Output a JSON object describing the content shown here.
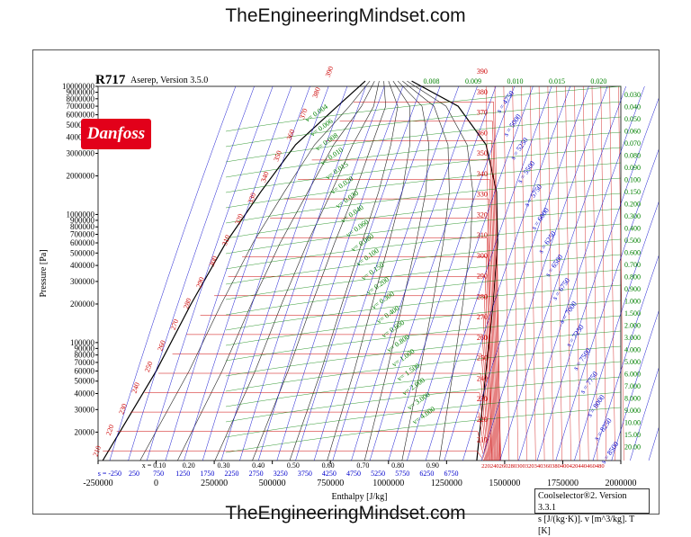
{
  "watermark": {
    "top": "TheEngineeringMindset.com",
    "bottom": "TheEngineeringMindset.com"
  },
  "header": {
    "title": "R717",
    "subtitle": "Aserep, Version 3.5.0",
    "logo_text": "Danfoss"
  },
  "info_box": {
    "line1": "Coolselector®2. Version 3.3.1",
    "line2": "s [J/(kg·K)]. v [m^3/kg]. T [K]"
  },
  "chart_data": {
    "type": "line",
    "title": "R717",
    "xlabel": "Enthalpy [J/kg]",
    "ylabel": "Pressure [Pa]",
    "xlim": [
      -250000,
      2000000
    ],
    "ylim": [
      12000,
      10000000
    ],
    "y_scale": "log",
    "grid": true,
    "x_ticks": [
      "-250000",
      "0",
      "250000",
      "500000",
      "750000",
      "1000000",
      "1250000",
      "1500000",
      "1750000",
      "2000000"
    ],
    "y_tick_labels": [
      "10000000",
      "9000000",
      "8000000",
      "7000000",
      "6000000",
      "5000000",
      "4000000",
      "3000000",
      "2000000",
      "1000000",
      "900000",
      "800000",
      "700000",
      "600000",
      "500000",
      "400000",
      "300000",
      "200000",
      "100000",
      "90000",
      "80000",
      "70000",
      "60000",
      "50000",
      "40000",
      "30000",
      "20000"
    ],
    "quality_labels": [
      "x = 0.10",
      "0.20",
      "0.30",
      "0.40",
      "0.50",
      "0.60",
      "0.70",
      "0.80",
      "0.90"
    ],
    "entropy_bottom_labels": [
      "s = -250",
      "250",
      "750",
      "1250",
      "1750",
      "2250",
      "2750",
      "3250",
      "3750",
      "4250",
      "4750",
      "5250",
      "5750",
      "6250",
      "6750"
    ],
    "temperature_labels_left": [
      "210",
      "220",
      "230",
      "240",
      "250",
      "260",
      "270",
      "280",
      "290",
      "300",
      "310",
      "320",
      "330",
      "340",
      "350",
      "360",
      "370",
      "380",
      "390"
    ],
    "temperature_labels_right": [
      "210",
      "220",
      "230",
      "240",
      "250",
      "260",
      "270",
      "280",
      "290",
      "300",
      "310",
      "320",
      "330",
      "340",
      "350",
      "360",
      "370",
      "380",
      "390"
    ],
    "bottom_temp_labels": "220240260280300320340360380400420440460480",
    "volume_labels_left": [
      "v= 0.004",
      "v= 0.006",
      "v= 0.008",
      "v= 0.010",
      "v= 0.015",
      "v= 0.020",
      "v= 0.030",
      "v= 0.040",
      "v= 0.060",
      "v= 0.080",
      "v= 0.100",
      "v= 0.150",
      "v= 0.200",
      "v= 0.300",
      "v= 0.400",
      "v= 0.600",
      "v= 0.800",
      "v= 1.000",
      "v= 1.500",
      "v= 2.000",
      "v= 3.000",
      "v= 4.000"
    ],
    "volume_labels_right": [
      "0.030",
      "0.040",
      "0.050",
      "0.060",
      "0.070",
      "0.080",
      "0.090",
      "0.100",
      "0.150",
      "0.200",
      "0.300",
      "0.400",
      "0.500",
      "0.600",
      "0.700",
      "0.800",
      "0.900",
      "1.000",
      "1.500",
      "2.000",
      "3.000",
      "4.000",
      "5.000",
      "6.000",
      "7.000",
      "8.000",
      "9.000",
      "10.00",
      "15.00",
      "20.00"
    ],
    "volume_labels_top": [
      "0.008",
      "0.009",
      "0.010",
      "0.015",
      "0.020"
    ],
    "entropy_diag_labels": [
      "s = 4750",
      "s = 5000",
      "s = 5250",
      "s = 5500",
      "s = 5750",
      "s = 6000",
      "s = 6250",
      "s = 6500",
      "s = 6750",
      "s = 7000",
      "s = 7250",
      "s = 7500",
      "s = 7750",
      "s = 8000",
      "s = 8250",
      "s = 8500"
    ],
    "colors": {
      "isotherm": "#cc0000",
      "isochore": "#008000",
      "isentrope": "#0000cc",
      "dome": "#000000",
      "quality": "#222222"
    }
  }
}
